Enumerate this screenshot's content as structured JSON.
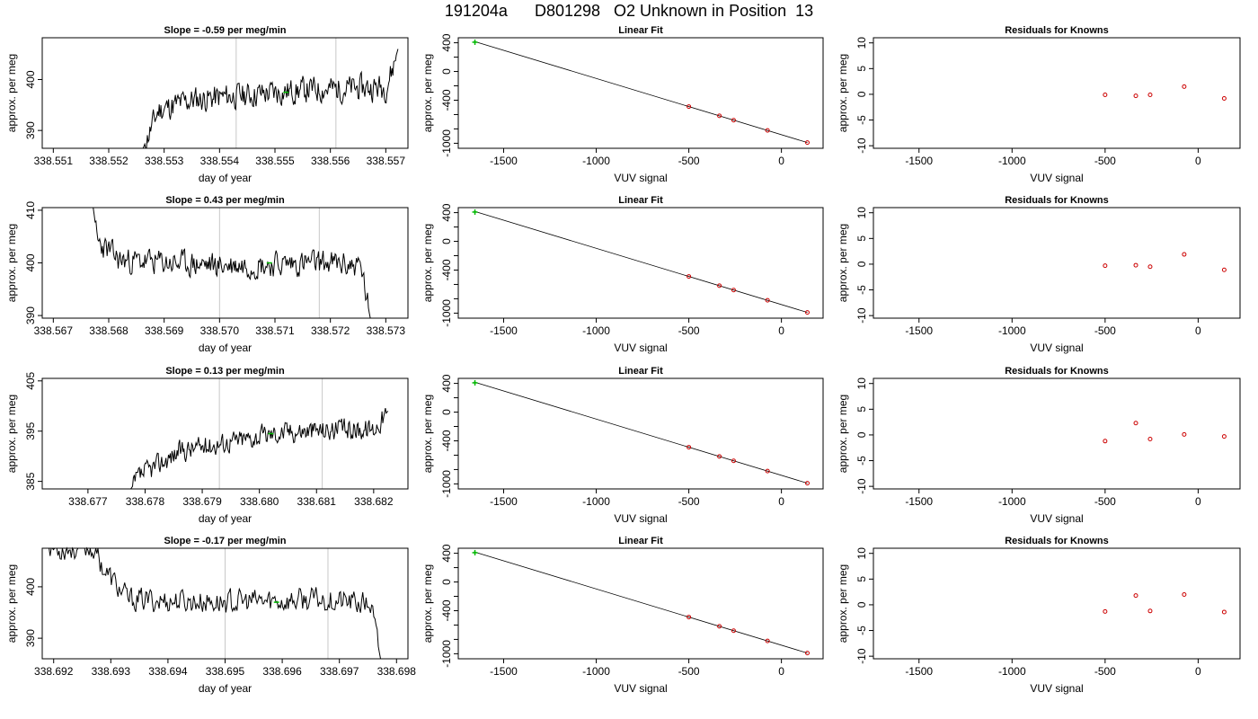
{
  "page_title": "191204a      D801298   O2 Unknown in Position  13",
  "colors": {
    "trace": "#000000",
    "known": "#cc0000",
    "unknown": "#00bb00",
    "vline": "#c8c8c8",
    "fitline": "#000000"
  },
  "chart_data": [
    {
      "type": "line",
      "title": "Slope =  -0.59  per meg/min",
      "xlabel": "day of year",
      "ylabel": "approx. per meg",
      "xlim": [
        338.5508,
        338.5574
      ],
      "ylim": [
        386.5,
        408.2
      ],
      "xticks": [
        "338.551",
        "338.552",
        "338.553",
        "338.554",
        "338.555",
        "338.556",
        "338.557"
      ],
      "yticks": [
        "390",
        "400"
      ],
      "vlines": [
        338.5543,
        338.5561
      ],
      "trace_start": 338.55262,
      "trace_end": 338.55722,
      "trace_seed": 11,
      "trace_levels": [
        {
          "x": 338.55262,
          "y": 386.5
        },
        {
          "x": 338.5529,
          "y": 394
        },
        {
          "x": 338.5535,
          "y": 396
        },
        {
          "x": 338.5545,
          "y": 397
        },
        {
          "x": 338.5556,
          "y": 398
        },
        {
          "x": 338.557,
          "y": 398.5
        },
        {
          "x": 338.55712,
          "y": 402
        },
        {
          "x": 338.55722,
          "y": 406
        }
      ],
      "trace_noise": 2.3,
      "marker": {
        "x": 338.5552,
        "y": 397.5
      }
    },
    {
      "type": "line",
      "title": "Slope =  0.43  per meg/min",
      "xlabel": "day of year",
      "ylabel": "approx. per meg",
      "xlim": [
        338.5668,
        338.5734
      ],
      "ylim": [
        389.5,
        410.5
      ],
      "xticks": [
        "338.567",
        "338.568",
        "338.569",
        "338.570",
        "338.571",
        "338.572",
        "338.573"
      ],
      "yticks": [
        "390",
        "400",
        "410"
      ],
      "vlines": [
        338.57,
        338.5718
      ],
      "trace_start": 338.56772,
      "trace_end": 338.57272,
      "trace_seed": 23,
      "trace_levels": [
        {
          "x": 338.56772,
          "y": 410.5
        },
        {
          "x": 338.5678,
          "y": 404
        },
        {
          "x": 338.5682,
          "y": 400.5
        },
        {
          "x": 338.57,
          "y": 399.5
        },
        {
          "x": 338.5718,
          "y": 400
        },
        {
          "x": 338.57255,
          "y": 399.5
        },
        {
          "x": 338.57272,
          "y": 389.5
        }
      ],
      "trace_noise": 2.2,
      "marker": {
        "x": 338.5709,
        "y": 400
      }
    },
    {
      "type": "line",
      "title": "Slope =  0.13  per meg/min",
      "xlabel": "day of year",
      "ylabel": "approx. per meg",
      "xlim": [
        338.6762,
        338.6826
      ],
      "ylim": [
        383.5,
        405.5
      ],
      "xticks": [
        "338.677",
        "338.678",
        "338.679",
        "338.680",
        "338.681",
        "338.682"
      ],
      "yticks": [
        "385",
        "395",
        "405"
      ],
      "vlines": [
        338.6793,
        338.6811
      ],
      "trace_start": 338.67775,
      "trace_end": 338.68225,
      "trace_seed": 37,
      "trace_levels": [
        {
          "x": 338.67775,
          "y": 383.5
        },
        {
          "x": 338.6779,
          "y": 386
        },
        {
          "x": 338.6786,
          "y": 391
        },
        {
          "x": 338.6795,
          "y": 393
        },
        {
          "x": 338.6805,
          "y": 395
        },
        {
          "x": 338.682,
          "y": 395.5
        },
        {
          "x": 338.68225,
          "y": 399
        }
      ],
      "trace_noise": 1.9,
      "marker": {
        "x": 338.6802,
        "y": 394.5
      }
    },
    {
      "type": "line",
      "title": "Slope =  -0.17  per meg/min",
      "xlabel": "day of year",
      "ylabel": "approx. per meg",
      "xlim": [
        338.6918,
        338.6982
      ],
      "ylim": [
        386,
        407.5
      ],
      "xticks": [
        "338.692",
        "338.693",
        "338.694",
        "338.695",
        "338.696",
        "338.697",
        "338.698"
      ],
      "yticks": [
        "390",
        "400"
      ],
      "vlines": [
        338.695,
        338.6968
      ],
      "trace_start": 338.69188,
      "trace_end": 338.69772,
      "trace_seed": 53,
      "trace_levels": [
        {
          "x": 338.69188,
          "y": 407.5
        },
        {
          "x": 338.6927,
          "y": 407.5
        },
        {
          "x": 338.6929,
          "y": 403
        },
        {
          "x": 338.6933,
          "y": 397.5
        },
        {
          "x": 338.695,
          "y": 397
        },
        {
          "x": 338.6968,
          "y": 397.5
        },
        {
          "x": 338.69755,
          "y": 396.5
        },
        {
          "x": 338.69772,
          "y": 386
        }
      ],
      "trace_noise": 2.1,
      "marker": {
        "x": 338.6959,
        "y": 397
      }
    },
    {
      "type": "scatter",
      "title": "Linear Fit",
      "xlabel": "VUV signal",
      "ylabel": "approx. per meg",
      "xlim": [
        -1745,
        225
      ],
      "ylim": [
        -1070,
        470
      ],
      "xticks": [
        -1500,
        -1000,
        -500,
        0
      ],
      "yticks": [
        -1000,
        -800,
        -600,
        -400,
        -200,
        0,
        200,
        400
      ],
      "ytick_labels": [
        "-1000",
        "",
        "",
        "-400",
        "",
        "0",
        "",
        "400"
      ],
      "fit_line": [
        [
          -1660,
          420
        ],
        [
          140,
          -990
        ]
      ],
      "known_x": [
        -500,
        -335,
        -258,
        -75,
        140
      ],
      "known_y": [
        -508,
        -380,
        -318,
        -170,
        -990
      ],
      "unknown": {
        "x": -1655,
        "y": 408
      }
    },
    {
      "type": "scatter",
      "title": "Linear Fit",
      "xlabel": "VUV signal",
      "ylabel": "approx. per meg",
      "xlim": [
        -1745,
        225
      ],
      "ylim": [
        -1070,
        470
      ],
      "xticks": [
        -1500,
        -1000,
        -500,
        0
      ],
      "yticks": [
        -1000,
        -800,
        -600,
        -400,
        -200,
        0,
        200,
        400
      ],
      "ytick_labels": [
        "-1000",
        "",
        "",
        "-400",
        "",
        "0",
        "",
        "400"
      ],
      "fit_line": [
        [
          -1660,
          420
        ],
        [
          140,
          -990
        ]
      ],
      "known_x": [
        -500,
        -335,
        -258,
        -75,
        140
      ],
      "known_y": [
        -508,
        -380,
        -318,
        -170,
        -990
      ],
      "unknown": {
        "x": -1655,
        "y": 408
      }
    },
    {
      "type": "scatter",
      "title": "Linear Fit",
      "xlabel": "VUV signal",
      "ylabel": "approx. per meg",
      "xlim": [
        -1745,
        225
      ],
      "ylim": [
        -1070,
        470
      ],
      "xticks": [
        -1500,
        -1000,
        -500,
        0
      ],
      "yticks": [
        -1000,
        -800,
        -600,
        -400,
        -200,
        0,
        200,
        400
      ],
      "ytick_labels": [
        "-1000",
        "",
        "",
        "-400",
        "",
        "0",
        "",
        "400"
      ],
      "fit_line": [
        [
          -1660,
          420
        ],
        [
          140,
          -990
        ]
      ],
      "known_x": [
        -500,
        -335,
        -258,
        -75,
        140
      ],
      "known_y": [
        -508,
        -380,
        -318,
        -170,
        -990
      ],
      "unknown": {
        "x": -1655,
        "y": 408
      }
    },
    {
      "type": "scatter",
      "title": "Linear Fit",
      "xlabel": "VUV signal",
      "ylabel": "approx. per meg",
      "xlim": [
        -1745,
        225
      ],
      "ylim": [
        -1070,
        470
      ],
      "xticks": [
        -1500,
        -1000,
        -500,
        0
      ],
      "yticks": [
        -1000,
        -800,
        -600,
        -400,
        -200,
        0,
        200,
        400
      ],
      "ytick_labels": [
        "-1000",
        "",
        "",
        "-400",
        "",
        "0",
        "",
        "400"
      ],
      "fit_line": [
        [
          -1660,
          420
        ],
        [
          140,
          -990
        ]
      ],
      "known_x": [
        -500,
        -335,
        -258,
        -75,
        140
      ],
      "known_y": [
        -508,
        -380,
        -318,
        -170,
        -990
      ],
      "unknown": {
        "x": -1655,
        "y": 408
      }
    },
    {
      "type": "scatter",
      "title": "Residuals for Knowns",
      "xlabel": "VUV signal",
      "ylabel": "approx. per meg",
      "xlim": [
        -1745,
        225
      ],
      "ylim": [
        -10.5,
        11
      ],
      "xticks": [
        -1500,
        -1000,
        -500,
        0
      ],
      "yticks": [
        -10,
        -5,
        0,
        5,
        10
      ],
      "x": [
        -500,
        -335,
        -258,
        -75,
        140
      ],
      "y": [
        -0.1,
        -0.3,
        -0.1,
        1.5,
        -0.8
      ]
    },
    {
      "type": "scatter",
      "title": "Residuals for Knowns",
      "xlabel": "VUV signal",
      "ylabel": "approx. per meg",
      "xlim": [
        -1745,
        225
      ],
      "ylim": [
        -10.5,
        11
      ],
      "xticks": [
        -1500,
        -1000,
        -500,
        0
      ],
      "yticks": [
        -10,
        -5,
        0,
        5,
        10
      ],
      "x": [
        -500,
        -335,
        -258,
        -75,
        140
      ],
      "y": [
        -0.3,
        -0.2,
        -0.5,
        1.9,
        -1.1
      ]
    },
    {
      "type": "scatter",
      "title": "Residuals for Knowns",
      "xlabel": "VUV signal",
      "ylabel": "approx. per meg",
      "xlim": [
        -1745,
        225
      ],
      "ylim": [
        -10.5,
        11
      ],
      "xticks": [
        -1500,
        -1000,
        -500,
        0
      ],
      "yticks": [
        -10,
        -5,
        0,
        5,
        10
      ],
      "x": [
        -500,
        -335,
        -258,
        -75,
        140
      ],
      "y": [
        -1.2,
        2.3,
        -0.8,
        0.1,
        -0.3
      ]
    },
    {
      "type": "scatter",
      "title": "Residuals for Knowns",
      "xlabel": "VUV signal",
      "ylabel": "approx. per meg",
      "xlim": [
        -1745,
        225
      ],
      "ylim": [
        -10.5,
        11
      ],
      "xticks": [
        -1500,
        -1000,
        -500,
        0
      ],
      "yticks": [
        -10,
        -5,
        0,
        5,
        10
      ],
      "x": [
        -500,
        -335,
        -258,
        -75,
        140
      ],
      "y": [
        -1.3,
        1.8,
        -1.2,
        2.0,
        -1.4
      ]
    }
  ]
}
